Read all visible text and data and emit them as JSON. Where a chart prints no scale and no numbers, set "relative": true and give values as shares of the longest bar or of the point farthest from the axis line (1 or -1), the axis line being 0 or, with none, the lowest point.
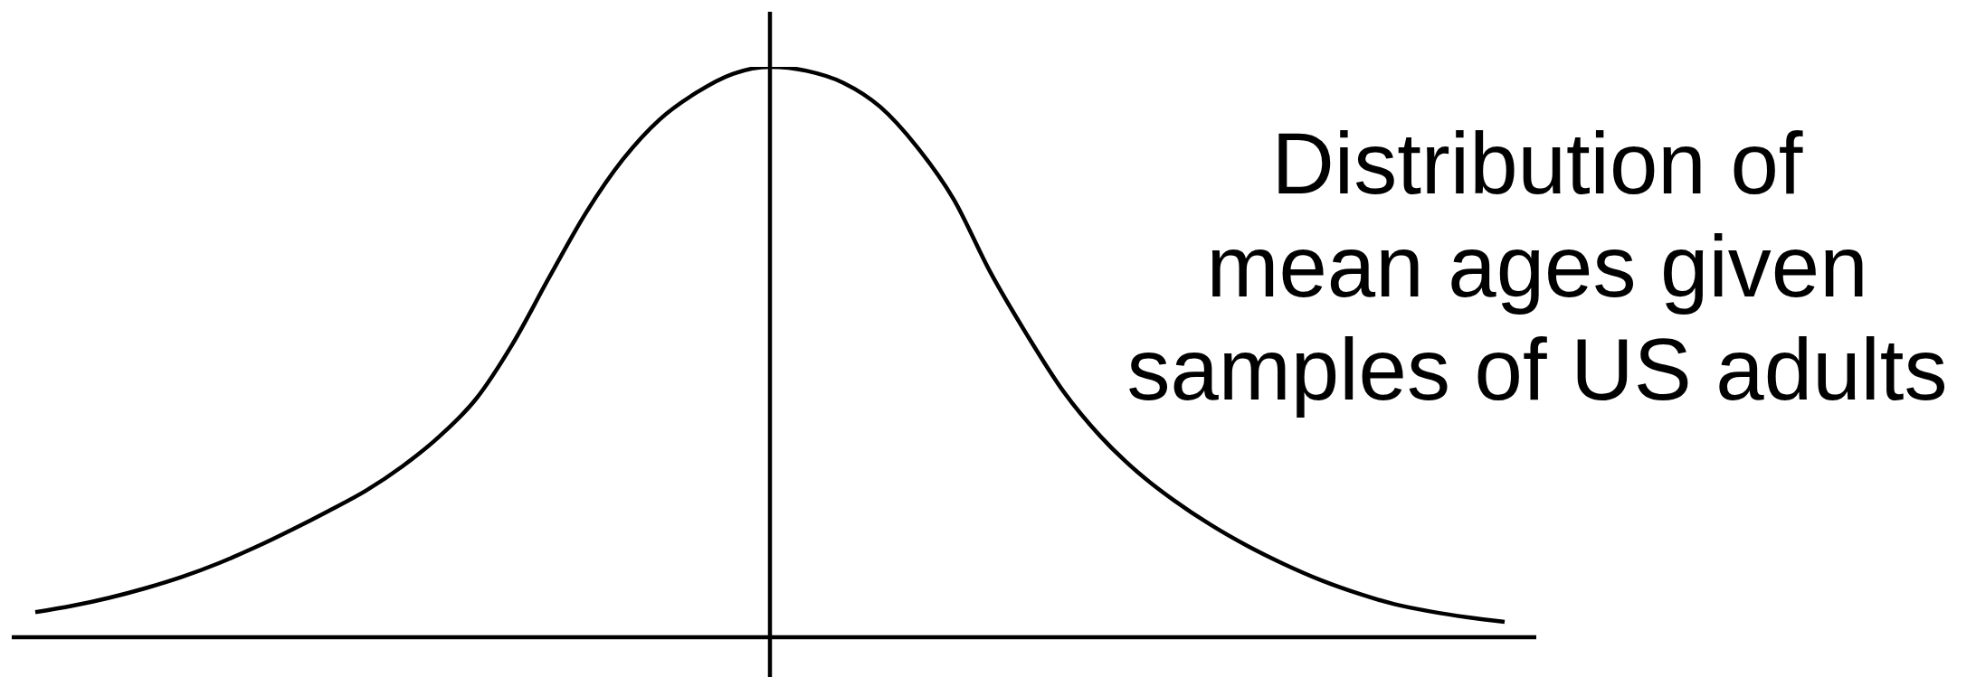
{
  "chart_data": {
    "type": "line",
    "title": "Distribution of\nmean ages given\nsamples of US adults",
    "relative": true,
    "categories": [
      null,
      null,
      null,
      null,
      null,
      null,
      null,
      null,
      null,
      null,
      null,
      null,
      null,
      null,
      null,
      null,
      null,
      null,
      null,
      null,
      null,
      null,
      null,
      null,
      null,
      null,
      null,
      null,
      null,
      null,
      null,
      null,
      null,
      null,
      null,
      null,
      null,
      null,
      null,
      null,
      null
    ],
    "values": [
      0.044,
      0.055,
      0.069,
      0.086,
      0.106,
      0.13,
      0.158,
      0.189,
      0.222,
      0.257,
      0.3,
      0.352,
      0.418,
      0.515,
      0.632,
      0.745,
      0.838,
      0.908,
      0.955,
      0.988,
      1,
      0.993,
      0.972,
      0.93,
      0.86,
      0.768,
      0.64,
      0.53,
      0.43,
      0.352,
      0.29,
      0.24,
      0.197,
      0.16,
      0.128,
      0.1,
      0.077,
      0.058,
      0.045,
      0.035,
      0.027
    ],
    "color": "#000000"
  }
}
